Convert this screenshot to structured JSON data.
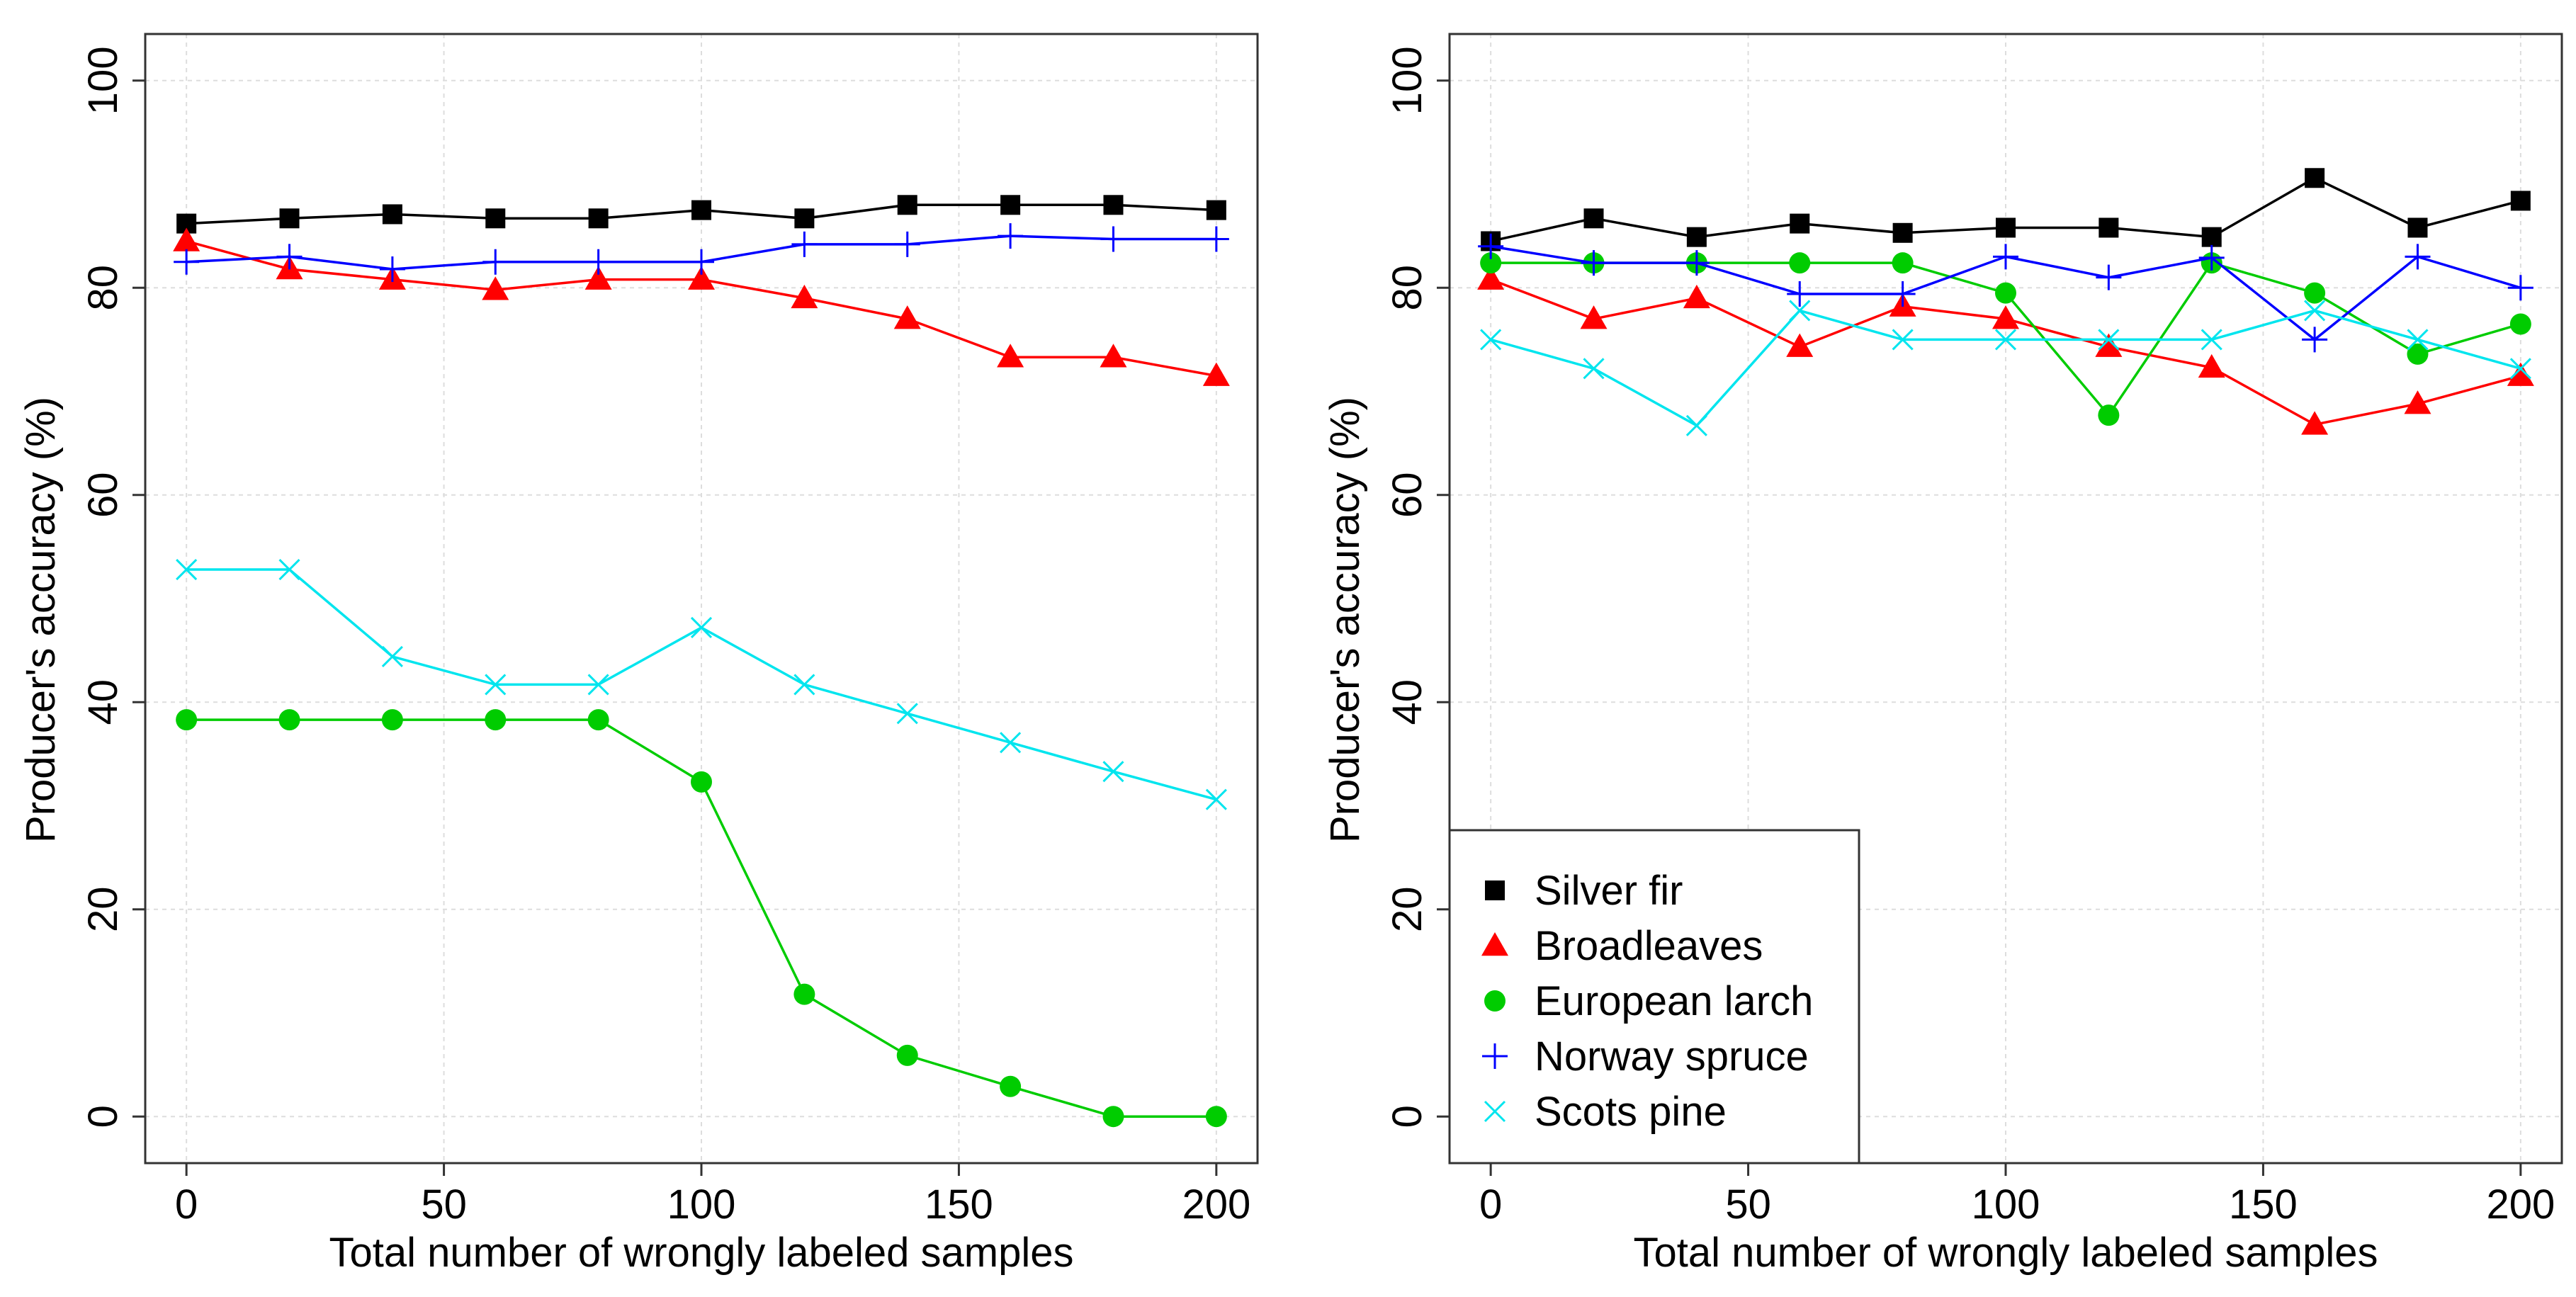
{
  "colors": {
    "silver_fir": "#000000",
    "broadleaves": "#ff0000",
    "european_larch": "#00cc00",
    "norway_spruce": "#0000ff",
    "scots_pine": "#00e5ee",
    "grid": "#dddddd",
    "frame": "#333333"
  },
  "legend": {
    "items": [
      {
        "key": "silver_fir",
        "label": "Silver fir",
        "marker": "square"
      },
      {
        "key": "broadleaves",
        "label": "Broadleaves",
        "marker": "triangle"
      },
      {
        "key": "european_larch",
        "label": "European larch",
        "marker": "circle"
      },
      {
        "key": "norway_spruce",
        "label": "Norway spruce",
        "marker": "plus"
      },
      {
        "key": "scots_pine",
        "label": "Scots pine",
        "marker": "cross"
      }
    ]
  },
  "chart_data": [
    {
      "type": "line",
      "title": "",
      "xlabel": "Total number of wrongly labeled samples",
      "ylabel": "Producer's accuracy (%)",
      "xlim": [
        -8,
        208
      ],
      "ylim": [
        -4.5,
        104.5
      ],
      "xticks": [
        0,
        50,
        100,
        150,
        200
      ],
      "yticks": [
        0,
        20,
        40,
        60,
        80,
        100
      ],
      "grid": true,
      "x": [
        0,
        20,
        40,
        60,
        80,
        100,
        120,
        140,
        160,
        180,
        200
      ],
      "series": [
        {
          "key": "silver_fir",
          "name": "Silver fir",
          "marker": "square",
          "values": [
            86.2,
            86.7,
            87.1,
            86.7,
            86.7,
            87.5,
            86.7,
            88.0,
            88.0,
            88.0,
            87.5
          ]
        },
        {
          "key": "broadleaves",
          "name": "Broadleaves",
          "marker": "triangle",
          "values": [
            84.5,
            81.8,
            80.8,
            79.8,
            80.8,
            80.8,
            79.0,
            77.0,
            73.3,
            73.3,
            71.5
          ]
        },
        {
          "key": "european_larch",
          "name": "European larch",
          "marker": "circle",
          "values": [
            38.3,
            38.3,
            38.3,
            38.3,
            38.3,
            32.3,
            11.8,
            5.9,
            2.9,
            0.0,
            0.0
          ]
        },
        {
          "key": "norway_spruce",
          "name": "Norway spruce",
          "marker": "plus",
          "values": [
            82.5,
            83.0,
            81.8,
            82.5,
            82.5,
            82.5,
            84.2,
            84.2,
            85.0,
            84.7,
            84.7
          ]
        },
        {
          "key": "scots_pine",
          "name": "Scots pine",
          "marker": "cross",
          "values": [
            52.8,
            52.8,
            44.4,
            41.7,
            41.7,
            47.2,
            41.7,
            38.9,
            36.1,
            33.3,
            30.6
          ]
        }
      ]
    },
    {
      "type": "line",
      "title": "",
      "xlabel": "Total number of wrongly labeled samples",
      "ylabel": "Producer's accuracy (%)",
      "xlim": [
        -8,
        208
      ],
      "ylim": [
        -4.5,
        104.5
      ],
      "xticks": [
        0,
        50,
        100,
        150,
        200
      ],
      "yticks": [
        0,
        20,
        40,
        60,
        80,
        100
      ],
      "grid": true,
      "legend_position": "bottom-left",
      "x": [
        0,
        20,
        40,
        60,
        80,
        100,
        120,
        140,
        160,
        180,
        200
      ],
      "series": [
        {
          "key": "silver_fir",
          "name": "Silver fir",
          "marker": "square",
          "values": [
            84.5,
            86.7,
            84.9,
            86.2,
            85.3,
            85.8,
            85.8,
            84.9,
            90.6,
            85.8,
            88.4
          ]
        },
        {
          "key": "broadleaves",
          "name": "Broadleaves",
          "marker": "triangle",
          "values": [
            80.8,
            77.0,
            79.0,
            74.3,
            78.2,
            77.0,
            74.3,
            72.3,
            66.8,
            68.8,
            71.5
          ]
        },
        {
          "key": "european_larch",
          "name": "European larch",
          "marker": "circle",
          "values": [
            82.4,
            82.4,
            82.4,
            82.4,
            82.4,
            79.5,
            67.7,
            82.4,
            79.5,
            73.6,
            76.5
          ]
        },
        {
          "key": "norway_spruce",
          "name": "Norway spruce",
          "marker": "plus",
          "values": [
            84.0,
            82.4,
            82.4,
            79.4,
            79.4,
            83.0,
            81.0,
            82.9,
            75.0,
            83.0,
            80.0
          ]
        },
        {
          "key": "scots_pine",
          "name": "Scots pine",
          "marker": "cross",
          "values": [
            75.0,
            72.2,
            66.7,
            77.8,
            75.0,
            75.0,
            75.0,
            75.0,
            77.8,
            75.0,
            72.2
          ]
        }
      ]
    }
  ]
}
